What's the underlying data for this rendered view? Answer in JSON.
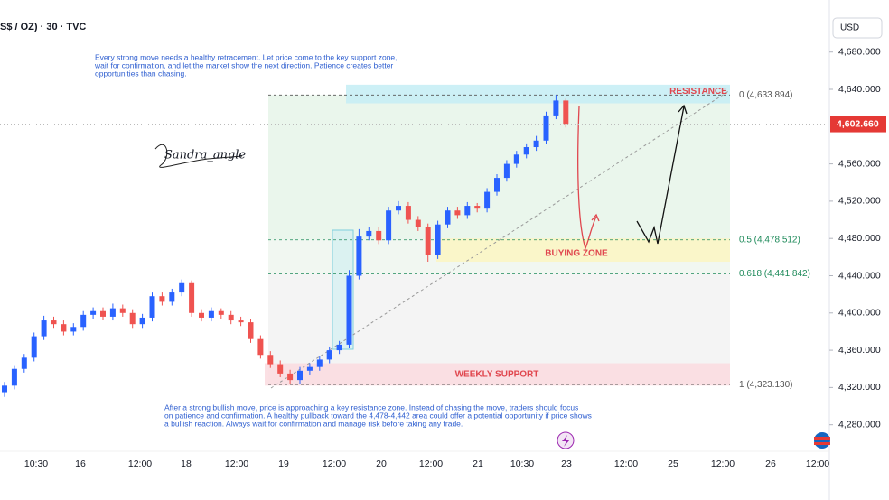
{
  "chart_data": {
    "type": "candlestick",
    "title": "S$ / OZ) · 30 · TVC",
    "currency": "USD",
    "ylim": [
      4251.6,
      4735.9
    ],
    "yticks": [
      {
        "value": 4280,
        "label": "4,280.000"
      },
      {
        "value": 4320,
        "label": "4,320.000"
      },
      {
        "value": 4360,
        "label": "4,360.000"
      },
      {
        "value": 4400,
        "label": "4,400.000"
      },
      {
        "value": 4440,
        "label": "4,440.000"
      },
      {
        "value": 4480,
        "label": "4,480.000"
      },
      {
        "value": 4520,
        "label": "4,520.000"
      },
      {
        "value": 4560,
        "label": "4,560.000"
      },
      {
        "value": 4640,
        "label": "4,640.000"
      },
      {
        "value": 4680,
        "label": "4,680.000"
      }
    ],
    "x_labels": [
      "10:30",
      "16",
      "12:00",
      "18",
      "12:00",
      "19",
      "12:00",
      "20",
      "12:00",
      "21",
      "10:30",
      "23",
      "12:00",
      "25",
      "12:00",
      "26",
      "12:00"
    ],
    "up_color": "#2962ff",
    "down_color": "#ef5350",
    "series": {
      "open": [
        4315,
        4322,
        4340,
        4352,
        4375,
        4392,
        4388,
        4380,
        4385,
        4398,
        4402,
        4396,
        4405,
        4400,
        4388,
        4395,
        4418,
        4412,
        4422,
        4432,
        4400,
        4395,
        4402,
        4398,
        4392,
        4390,
        4372,
        4355,
        4345,
        4335,
        4328,
        4338,
        4342,
        4350,
        4360,
        4366,
        4440,
        4482,
        4488,
        4478,
        4510,
        4515,
        4500,
        4492,
        4462,
        4495,
        4510,
        4505,
        4515,
        4512,
        4530,
        4545,
        4560,
        4570,
        4578,
        4585,
        4612,
        4628
      ],
      "high": [
        4326,
        4344,
        4356,
        4379,
        4397,
        4396,
        4392,
        4389,
        4402,
        4406,
        4406,
        4410,
        4409,
        4404,
        4399,
        4422,
        4422,
        4426,
        4436,
        4435,
        4404,
        4406,
        4405,
        4402,
        4396,
        4394,
        4376,
        4359,
        4349,
        4339,
        4342,
        4346,
        4354,
        4364,
        4370,
        4446,
        4490,
        4492,
        4492,
        4514,
        4520,
        4519,
        4504,
        4496,
        4499,
        4514,
        4514,
        4519,
        4518,
        4534,
        4549,
        4564,
        4574,
        4582,
        4590,
        4616,
        4634,
        4630
      ],
      "low": [
        4310,
        4318,
        4336,
        4348,
        4371,
        4384,
        4376,
        4376,
        4381,
        4394,
        4392,
        4392,
        4396,
        4384,
        4384,
        4391,
        4408,
        4408,
        4418,
        4396,
        4391,
        4391,
        4394,
        4388,
        4386,
        4368,
        4351,
        4341,
        4331,
        4324,
        4324,
        4334,
        4338,
        4346,
        4356,
        4362,
        4436,
        4478,
        4474,
        4474,
        4506,
        4496,
        4488,
        4455,
        4458,
        4491,
        4501,
        4501,
        4508,
        4508,
        4526,
        4541,
        4556,
        4566,
        4574,
        4581,
        4608,
        4599
      ],
      "close": [
        4322,
        4340,
        4352,
        4375,
        4392,
        4388,
        4380,
        4385,
        4398,
        4402,
        4396,
        4405,
        4400,
        4388,
        4395,
        4418,
        4412,
        4422,
        4432,
        4400,
        4395,
        4402,
        4398,
        4392,
        4390,
        4372,
        4355,
        4345,
        4335,
        4328,
        4338,
        4342,
        4350,
        4360,
        4366,
        4440,
        4482,
        4488,
        4478,
        4510,
        4515,
        4500,
        4492,
        4462,
        4495,
        4510,
        4505,
        4515,
        4512,
        4530,
        4545,
        4560,
        4570,
        4578,
        4585,
        4612,
        4628,
        4603
      ]
    },
    "last_price": {
      "value": 4602.66,
      "label": "4,602.660"
    },
    "levels": [
      {
        "value": 4633.894,
        "label": "0 (4,633.894)",
        "color": "#555555"
      },
      {
        "value": 4478.512,
        "label": "0.5 (4,478.512)",
        "color": "#1e8a5a"
      },
      {
        "value": 4441.842,
        "label": "0.618 (4,441.842)",
        "color": "#1e8a5a"
      },
      {
        "value": 4323.13,
        "label": "1 (4,323.130)",
        "color": "#555555"
      }
    ],
    "zones": [
      {
        "label": "RESISTANCE",
        "range": [
          4625,
          4645
        ],
        "color": "#c8eef5"
      },
      {
        "label": "BUYING ZONE",
        "range": [
          4455,
          4480
        ],
        "color": "#fbf5c4"
      },
      {
        "label": "WEEKLY SUPPORT",
        "range": [
          4322,
          4346
        ],
        "color": "#fbdde1"
      }
    ],
    "notes": {
      "top": [
        "Every strong move needs a healthy retracement. Let price come to the key support zone,",
        " wait for confirmation, and let the market show the next direction. Patience creates better",
        " opportunities than chasing."
      ],
      "bottom": [
        "After a strong bullish move, price is approaching a key resistance zone. Instead of chasing the move, traders should focus",
        "on patience and confirmation. A healthy pullback toward the 4,478-4,442 area could offer a potential opportunity if price shows",
        "a bullish reaction. Always wait for confirmation and manage risk before taking any trade."
      ]
    },
    "signature": "Sandra_angle"
  }
}
